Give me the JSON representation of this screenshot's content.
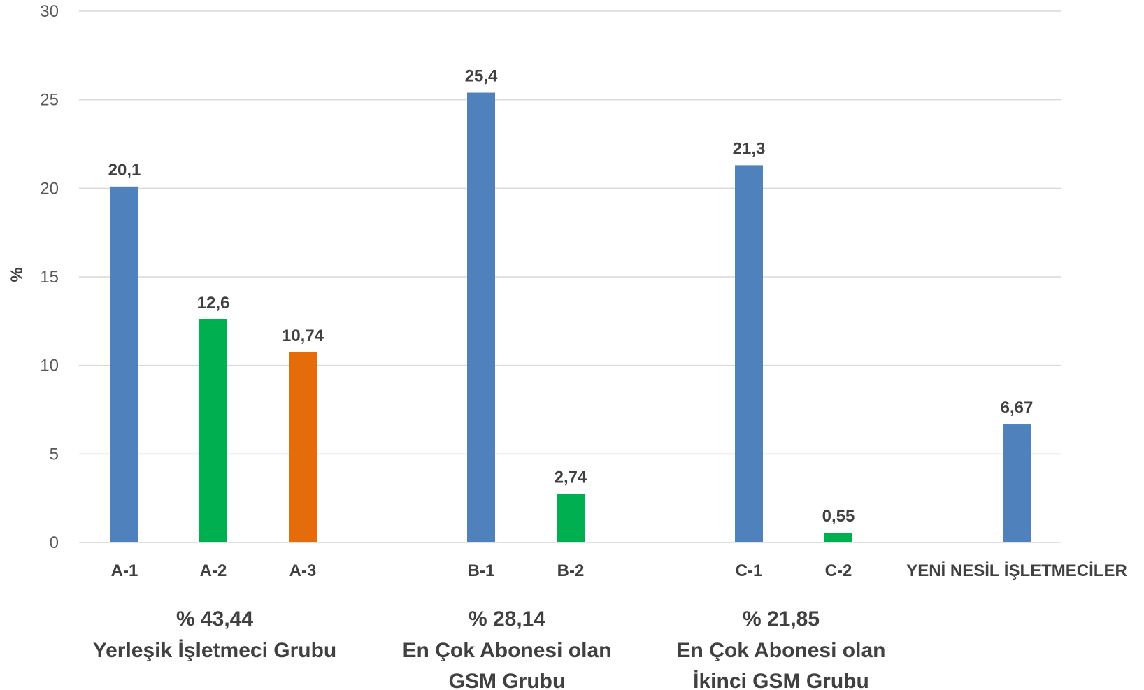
{
  "chart_data": {
    "type": "bar",
    "categories": [
      "A-1",
      "A-2",
      "A-3",
      "B-1",
      "B-2",
      "C-1",
      "C-2",
      "YENİ NESİL İŞLETMECİLER"
    ],
    "values": [
      20.1,
      12.6,
      10.74,
      25.4,
      2.74,
      21.3,
      0.55,
      6.67
    ],
    "value_labels": [
      "20,1",
      "12,6",
      "10,74",
      "25,4",
      "2,74",
      "21,3",
      "0,55",
      "6,67"
    ],
    "bar_colors": [
      "#4f81bd",
      "#00b050",
      "#e46c0a",
      "#4f81bd",
      "#00b050",
      "#4f81bd",
      "#00b050",
      "#4f81bd"
    ],
    "title": "",
    "xlabel": "",
    "ylabel": "%",
    "ylim": [
      0,
      30
    ],
    "yticks": [
      0,
      5,
      10,
      15,
      20,
      25,
      30
    ],
    "grid": true,
    "legend": "none",
    "groups": [
      {
        "lines": [
          "% 43,44",
          "Yerleşik İşletmeci Grubu"
        ],
        "categories": [
          "A-1",
          "A-2",
          "A-3"
        ]
      },
      {
        "lines": [
          "% 28,14",
          "En Çok Abonesi olan",
          "GSM Grubu"
        ],
        "categories": [
          "B-1",
          "B-2"
        ]
      },
      {
        "lines": [
          "% 21,85",
          "En Çok Abonesi olan",
          "İkinci GSM Grubu"
        ],
        "categories": [
          "C-1",
          "C-2"
        ]
      }
    ]
  }
}
